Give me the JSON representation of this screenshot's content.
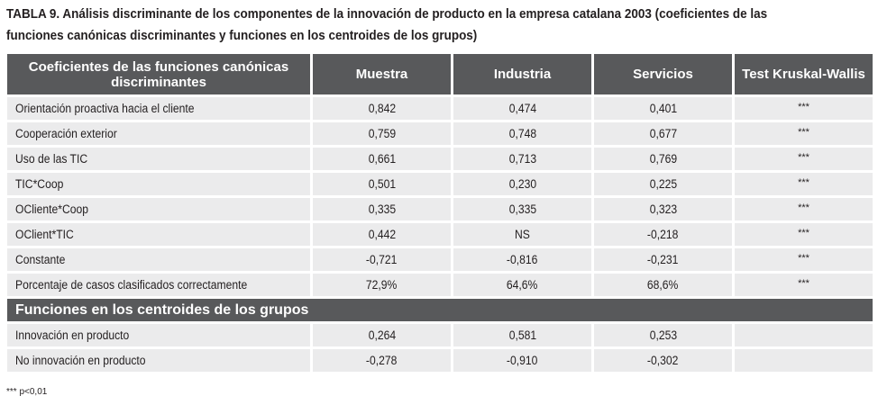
{
  "title": "TABLA 9. Análisis discriminante de los componentes de la innovación de producto en la empresa catalana 2003 (coeficientes de las funciones canónicas discriminantes y funciones en los centroides de los grupos)",
  "table": {
    "headers": [
      "Coeficientes de las funciones canónicas discriminantes",
      "Muestra",
      "Industria",
      "Servicios",
      "Test Kruskal-Wallis"
    ],
    "rows": [
      {
        "label": "Orientación proactiva hacia el cliente",
        "muestra": "0,842",
        "industria": "0,474",
        "servicios": "0,401",
        "kw": "***"
      },
      {
        "label": "Cooperación exterior",
        "muestra": "0,759",
        "industria": "0,748",
        "servicios": "0,677",
        "kw": "***"
      },
      {
        "label": "Uso de las TIC",
        "muestra": "0,661",
        "industria": "0,713",
        "servicios": "0,769",
        "kw": "***"
      },
      {
        "label": "TIC*Coop",
        "muestra": "0,501",
        "industria": "0,230",
        "servicios": "0,225",
        "kw": "***"
      },
      {
        "label": "OCliente*Coop",
        "muestra": "0,335",
        "industria": "0,335",
        "servicios": "0,323",
        "kw": "***"
      },
      {
        "label": "OClient*TIC",
        "muestra": "0,442",
        "industria": "NS",
        "servicios": "-0,218",
        "kw": "***"
      },
      {
        "label": "Constante",
        "muestra": "-0,721",
        "industria": "-0,816",
        "servicios": "-0,231",
        "kw": "***"
      },
      {
        "label": "Porcentaje de casos clasificados correctamente",
        "muestra": "72,9%",
        "industria": "64,6%",
        "servicios": "68,6%",
        "kw": "***"
      }
    ],
    "section_title": "Funciones en los centroides de los grupos",
    "centroid_rows": [
      {
        "label": "Innovación en producto",
        "muestra": "0,264",
        "industria": "0,581",
        "servicios": "0,253",
        "kw": ""
      },
      {
        "label": "No innovación en producto",
        "muestra": "-0,278",
        "industria": "-0,910",
        "servicios": "-0,302",
        "kw": ""
      }
    ]
  },
  "footnote": "*** p<0,01",
  "colors": {
    "header_bg": "#58595b",
    "cell_bg": "#ebebec",
    "text": "#231f20"
  }
}
